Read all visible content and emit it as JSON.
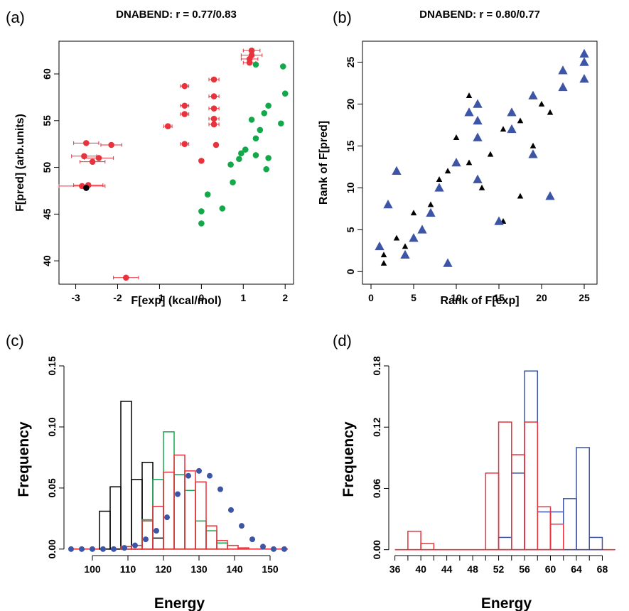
{
  "colors": {
    "red": "#e8323c",
    "green": "#13a84a",
    "black": "#000000",
    "blue": "#3d55a6",
    "axis": "#000000"
  },
  "chart_data": [
    {
      "panel": "(a)",
      "type": "scatter",
      "title": "DNABEND: r = 0.77/0.83",
      "xlabel": "F[exp] (kcal/mol)",
      "ylabel": "F[pred] (arb.units)",
      "xlim": [
        -3.4,
        2.2
      ],
      "ylim": [
        37.5,
        63.5
      ],
      "xticks": [
        -3,
        -2,
        -1,
        0,
        1,
        2
      ],
      "yticks": [
        40,
        45,
        50,
        55,
        60
      ],
      "box": true,
      "series": [
        {
          "color": "red",
          "error_bars": true,
          "points": [
            {
              "x": -2.75,
              "y": 52.6,
              "xerr": 0.3
            },
            {
              "x": -2.15,
              "y": 52.4,
              "xerr": 0.25
            },
            {
              "x": -2.8,
              "y": 51.2,
              "xerr": 0.3
            },
            {
              "x": -2.45,
              "y": 51.0,
              "xerr": 0.35
            },
            {
              "x": -2.6,
              "y": 50.6,
              "xerr": 0.3
            },
            {
              "x": -2.85,
              "y": 48.0,
              "xerr": 0.55
            },
            {
              "x": -2.7,
              "y": 48.1,
              "xerr": 0.35
            },
            {
              "x": -1.8,
              "y": 38.2,
              "xerr": 0.3
            },
            {
              "x": -0.8,
              "y": 54.4,
              "xerr": 0.1
            },
            {
              "x": -0.4,
              "y": 58.7,
              "xerr": 0.1
            },
            {
              "x": -0.4,
              "y": 56.6,
              "xerr": 0.1
            },
            {
              "x": -0.4,
              "y": 55.7,
              "xerr": 0.1
            },
            {
              "x": -0.4,
              "y": 52.5,
              "xerr": 0.1
            },
            {
              "x": 0.0,
              "y": 50.7,
              "xerr": 0.0
            },
            {
              "x": 0.3,
              "y": 59.4,
              "xerr": 0.12
            },
            {
              "x": 0.3,
              "y": 57.6,
              "xerr": 0.12
            },
            {
              "x": 0.3,
              "y": 56.3,
              "xerr": 0.12
            },
            {
              "x": 0.3,
              "y": 55.2,
              "xerr": 0.12
            },
            {
              "x": 0.3,
              "y": 54.6,
              "xerr": 0.12
            },
            {
              "x": 0.35,
              "y": 52.4,
              "xerr": 0.0
            },
            {
              "x": 1.2,
              "y": 62.5,
              "xerr": 0.2
            },
            {
              "x": 1.2,
              "y": 62.0,
              "xerr": 0.25
            },
            {
              "x": 1.15,
              "y": 61.6,
              "xerr": 0.2
            },
            {
              "x": 1.15,
              "y": 61.2,
              "xerr": 0.15
            }
          ]
        },
        {
          "color": "green",
          "error_bars": false,
          "points": [
            {
              "x": 0.0,
              "y": 44.0
            },
            {
              "x": 0.0,
              "y": 45.3
            },
            {
              "x": 0.15,
              "y": 47.1
            },
            {
              "x": 0.5,
              "y": 45.6
            },
            {
              "x": 0.75,
              "y": 48.4
            },
            {
              "x": 0.7,
              "y": 50.3
            },
            {
              "x": 0.9,
              "y": 50.9
            },
            {
              "x": 0.95,
              "y": 51.5
            },
            {
              "x": 1.05,
              "y": 51.9
            },
            {
              "x": 1.2,
              "y": 55.1
            },
            {
              "x": 1.3,
              "y": 53.1
            },
            {
              "x": 1.3,
              "y": 51.3
            },
            {
              "x": 1.4,
              "y": 54.0
            },
            {
              "x": 1.5,
              "y": 55.8
            },
            {
              "x": 1.55,
              "y": 49.8
            },
            {
              "x": 1.6,
              "y": 51.0
            },
            {
              "x": 1.6,
              "y": 56.6
            },
            {
              "x": 1.3,
              "y": 61.0
            },
            {
              "x": 1.9,
              "y": 54.7
            },
            {
              "x": 1.95,
              "y": 60.8
            },
            {
              "x": 2.0,
              "y": 57.9
            }
          ]
        },
        {
          "color": "black",
          "error_bars": false,
          "points": [
            {
              "x": -2.75,
              "y": 47.8
            }
          ]
        }
      ]
    },
    {
      "panel": "(b)",
      "type": "scatter",
      "title": "DNABEND: r = 0.80/0.77",
      "xlabel": "Rank of F[exp]",
      "ylabel": "Rank of F[pred]",
      "xlim": [
        -1,
        26.5
      ],
      "ylim": [
        -1.5,
        27.5
      ],
      "xticks": [
        0,
        5,
        10,
        15,
        20,
        25
      ],
      "yticks": [
        0,
        5,
        10,
        15,
        20,
        25
      ],
      "box": true,
      "series": [
        {
          "color": "black",
          "marker": "triangle-small",
          "points": [
            {
              "x": 1.5,
              "y": 1
            },
            {
              "x": 1.5,
              "y": 2
            },
            {
              "x": 3,
              "y": 4
            },
            {
              "x": 4,
              "y": 3
            },
            {
              "x": 5,
              "y": 7
            },
            {
              "x": 6,
              "y": 5
            },
            {
              "x": 7,
              "y": 8
            },
            {
              "x": 8,
              "y": 11
            },
            {
              "x": 9,
              "y": 12
            },
            {
              "x": 10,
              "y": 16
            },
            {
              "x": 11.5,
              "y": 21
            },
            {
              "x": 11.5,
              "y": 13
            },
            {
              "x": 12.5,
              "y": 11
            },
            {
              "x": 13,
              "y": 10
            },
            {
              "x": 14,
              "y": 14
            },
            {
              "x": 15.5,
              "y": 6
            },
            {
              "x": 15.5,
              "y": 17
            },
            {
              "x": 16.5,
              "y": 17
            },
            {
              "x": 17.5,
              "y": 18
            },
            {
              "x": 17.5,
              "y": 9
            },
            {
              "x": 19,
              "y": 15
            },
            {
              "x": 20,
              "y": 20
            },
            {
              "x": 21,
              "y": 19
            }
          ]
        },
        {
          "color": "blue",
          "marker": "triangle-large",
          "points": [
            {
              "x": 1,
              "y": 3
            },
            {
              "x": 2,
              "y": 8
            },
            {
              "x": 3,
              "y": 12
            },
            {
              "x": 4,
              "y": 2
            },
            {
              "x": 5,
              "y": 4
            },
            {
              "x": 6,
              "y": 5
            },
            {
              "x": 7,
              "y": 7
            },
            {
              "x": 8,
              "y": 10
            },
            {
              "x": 9,
              "y": 1
            },
            {
              "x": 10,
              "y": 13
            },
            {
              "x": 11.5,
              "y": 19
            },
            {
              "x": 12.5,
              "y": 20
            },
            {
              "x": 12.5,
              "y": 18
            },
            {
              "x": 12.5,
              "y": 16
            },
            {
              "x": 12.5,
              "y": 11
            },
            {
              "x": 15,
              "y": 6
            },
            {
              "x": 16.5,
              "y": 19
            },
            {
              "x": 16.5,
              "y": 17
            },
            {
              "x": 19,
              "y": 21
            },
            {
              "x": 19,
              "y": 14
            },
            {
              "x": 21,
              "y": 9
            },
            {
              "x": 22.5,
              "y": 24
            },
            {
              "x": 22.5,
              "y": 22
            },
            {
              "x": 25,
              "y": 26
            },
            {
              "x": 25,
              "y": 25
            },
            {
              "x": 25,
              "y": 23
            }
          ]
        }
      ]
    },
    {
      "panel": "(c)",
      "type": "bar",
      "title": "",
      "xlabel": "Energy",
      "ylabel": "Frequency",
      "xlim": [
        93,
        156
      ],
      "ylim": [
        -0.003,
        0.15
      ],
      "xticks": [
        100,
        110,
        120,
        130,
        140,
        150
      ],
      "yticks": [
        0.0,
        0.05,
        0.1,
        0.15
      ],
      "ytick_labels": [
        "0.00",
        "0.05",
        "0.10",
        "0.15"
      ],
      "box": false,
      "baseline": 0,
      "baseline_range": [
        94,
        155
      ],
      "histograms": [
        {
          "color": "black",
          "bin_edges": [
            102,
            105,
            108,
            111,
            114,
            117,
            120
          ],
          "values": [
            0.031,
            0.051,
            0.121,
            0.057,
            0.071,
            0.009
          ]
        },
        {
          "color": "green",
          "bin_edges": [
            108,
            111,
            114,
            117,
            120,
            123,
            126,
            129,
            132,
            135,
            138
          ],
          "values": [
            0.002,
            0.003,
            0.024,
            0.057,
            0.096,
            0.061,
            0.048,
            0.023,
            0.015,
            0.005
          ]
        },
        {
          "color": "red",
          "bin_edges": [
            108,
            111,
            114,
            117,
            120,
            123,
            126,
            129,
            132,
            135,
            138,
            141,
            144
          ],
          "values": [
            0.002,
            0.003,
            0.023,
            0.035,
            0.063,
            0.077,
            0.064,
            0.055,
            0.019,
            0.007,
            0.003,
            0.001
          ]
        }
      ],
      "series": [
        {
          "color": "blue",
          "marker": "circle",
          "points": [
            {
              "x": 94,
              "y": 0
            },
            {
              "x": 97,
              "y": 0
            },
            {
              "x": 100,
              "y": 0
            },
            {
              "x": 103,
              "y": 0
            },
            {
              "x": 106,
              "y": 0
            },
            {
              "x": 109,
              "y": 0.001
            },
            {
              "x": 112,
              "y": 0.003
            },
            {
              "x": 115,
              "y": 0.008
            },
            {
              "x": 118,
              "y": 0.015
            },
            {
              "x": 121,
              "y": 0.026
            },
            {
              "x": 124,
              "y": 0.045
            },
            {
              "x": 127,
              "y": 0.06
            },
            {
              "x": 130,
              "y": 0.064
            },
            {
              "x": 133,
              "y": 0.06
            },
            {
              "x": 136,
              "y": 0.049
            },
            {
              "x": 139,
              "y": 0.032
            },
            {
              "x": 142,
              "y": 0.019
            },
            {
              "x": 145,
              "y": 0.008
            },
            {
              "x": 148,
              "y": 0.002
            },
            {
              "x": 151,
              "y": 0
            },
            {
              "x": 154,
              "y": 0
            }
          ]
        }
      ]
    },
    {
      "panel": "(d)",
      "type": "bar",
      "title": "",
      "xlabel": "Energy",
      "ylabel": "Frequency",
      "xlim": [
        35.6,
        70.8
      ],
      "ylim": [
        -0.003,
        0.18
      ],
      "xticks": [
        36,
        38,
        40,
        42,
        44,
        46,
        48,
        50,
        52,
        54,
        56,
        58,
        60,
        62,
        64,
        66,
        68
      ],
      "xtick_labels_shown": [
        36,
        40,
        44,
        48,
        52,
        56,
        60,
        64,
        68
      ],
      "yticks": [
        0.0,
        0.06,
        0.12,
        0.18
      ],
      "ytick_labels": [
        "0.00",
        "0.06",
        "0.12",
        "0.18"
      ],
      "box": false,
      "baseline": 0,
      "baseline_range": [
        36,
        70
      ],
      "histograms": [
        {
          "color": "blue",
          "bin_edges": [
            52,
            54,
            56,
            58,
            60,
            62,
            64,
            66,
            68
          ],
          "values": [
            0.012,
            0.075,
            0.175,
            0.037,
            0.037,
            0.05,
            0.1,
            0.012
          ]
        },
        {
          "color": "red",
          "bin_edges": [
            38,
            40,
            42,
            44,
            46,
            48,
            50,
            52,
            54,
            56,
            58,
            60,
            62
          ],
          "values": [
            0.018,
            0.006,
            0,
            0,
            0,
            0,
            0.075,
            0.125,
            0.093,
            0.125,
            0.042,
            0.025
          ]
        }
      ]
    }
  ]
}
